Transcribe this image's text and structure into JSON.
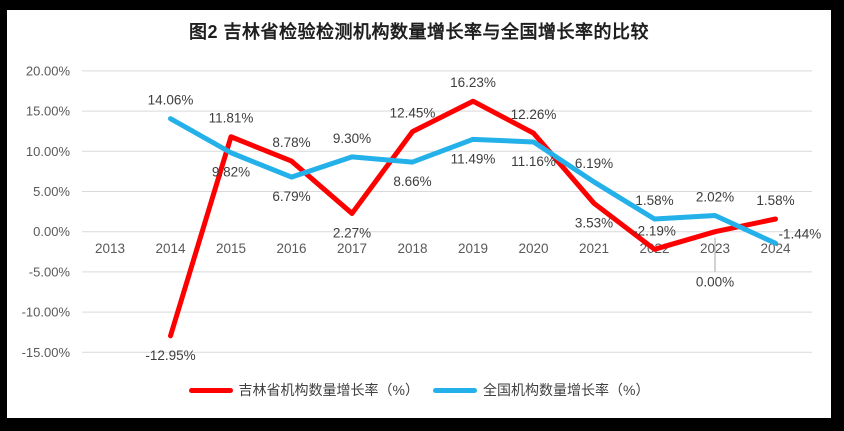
{
  "window": {
    "title": "图2 吉林省检验检测机构数量增长率与全国增长率的比较"
  },
  "chart_data": {
    "type": "line",
    "title": "图2 吉林省检验检测机构数量增长率与全国增长率的比较",
    "categories": [
      "2013",
      "2014",
      "2015",
      "2016",
      "2017",
      "2018",
      "2019",
      "2020",
      "2021",
      "2022",
      "2023",
      "2024"
    ],
    "series": [
      {
        "name": "吉林省机构数量增长率（%）",
        "color": "#FE0000",
        "values": [
          null,
          -12.95,
          11.81,
          8.78,
          2.27,
          12.45,
          16.23,
          12.26,
          3.53,
          -2.19,
          0.0,
          1.58
        ],
        "labels": [
          null,
          "-12.95%",
          "11.81%",
          "8.78%",
          "2.27%",
          "12.45%",
          "16.23%",
          "12.26%",
          "3.53%",
          "-2.19%",
          "0.00%",
          "1.58%"
        ],
        "label_positions": [
          null,
          "below",
          "above",
          "above",
          "below",
          "above",
          "above",
          "above",
          "below",
          "above",
          "below-leader",
          "above"
        ]
      },
      {
        "name": "全国机构数量增长率（%）",
        "color": "#24B1EA",
        "values": [
          null,
          14.06,
          9.82,
          6.79,
          9.3,
          8.66,
          11.49,
          11.16,
          6.19,
          1.58,
          2.02,
          -1.44
        ],
        "labels": [
          null,
          "14.06%",
          "9.82%",
          "6.79%",
          "9.30%",
          "8.66%",
          "11.49%",
          "11.16%",
          "6.19%",
          "1.58%",
          "2.02%",
          "-1.44%"
        ],
        "label_positions": [
          null,
          "above",
          "below",
          "below",
          "above",
          "below",
          "below",
          "below",
          "above",
          "above",
          "above",
          "right"
        ]
      }
    ],
    "y_axis": {
      "min": -15,
      "max": 20,
      "step": 5,
      "tick_labels": [
        "20.00%",
        "15.00%",
        "10.00%",
        "5.00%",
        "0.00%",
        "-5.00%",
        "-10.00%",
        "-15.00%"
      ]
    },
    "grid": true,
    "legend_position": "bottom",
    "colors": {
      "gridline": "#D9D9D9",
      "axis_text": "#595959",
      "data_label_text": "#3d3d3d",
      "leader_line": "#A6A6A6"
    }
  }
}
